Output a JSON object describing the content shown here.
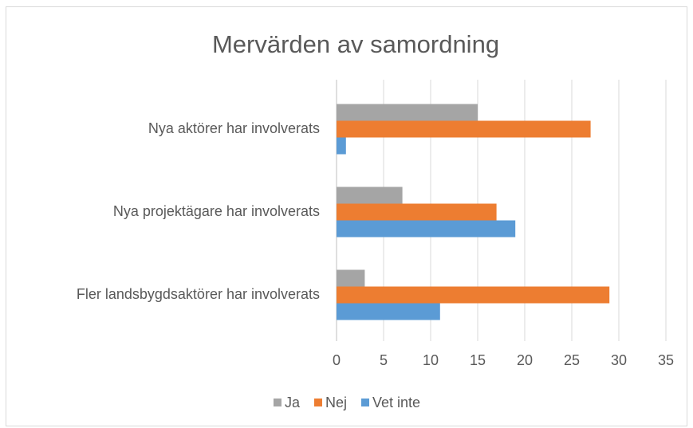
{
  "chart_data": {
    "type": "bar",
    "orientation": "horizontal",
    "title": "Mervärden av samordning",
    "categories": [
      "Nya aktörer har involverats",
      "Nya projektägare har involverats",
      "Fler landsbygdsaktörer har involverats"
    ],
    "series": [
      {
        "name": "Ja",
        "color": "#a5a5a5",
        "values": [
          15,
          7,
          3
        ]
      },
      {
        "name": "Nej",
        "color": "#ed7d31",
        "values": [
          27,
          17,
          29
        ]
      },
      {
        "name": "Vet inte",
        "color": "#5b9bd5",
        "values": [
          1,
          19,
          11
        ]
      }
    ],
    "xlim": [
      0,
      35
    ],
    "xticks": [
      0,
      5,
      10,
      15,
      20,
      25,
      30,
      35
    ],
    "grid": true,
    "legend": "bottom"
  }
}
